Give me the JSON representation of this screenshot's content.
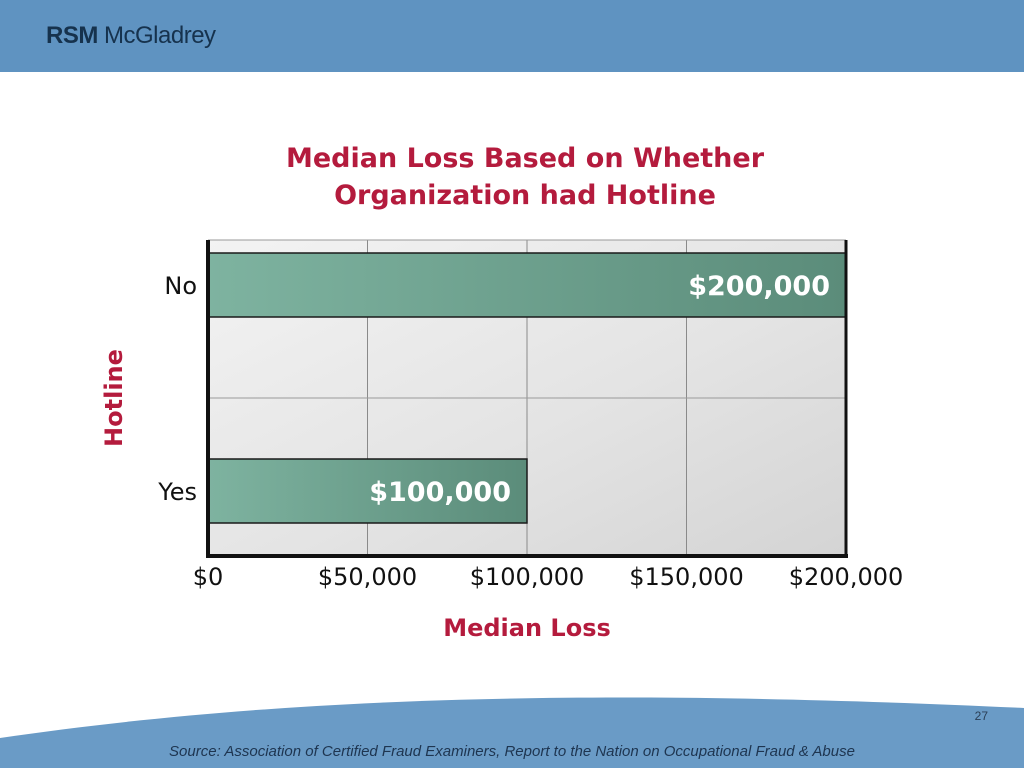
{
  "header": {
    "logo_rsm": "RSM",
    "logo_mcgladrey": "McGladrey"
  },
  "chart_title_line1": "Median Loss Based on Whether",
  "chart_title_line2": "Organization had Hotline",
  "chart_data": {
    "type": "bar",
    "orientation": "horizontal",
    "title": "Median Loss Based on Whether Organization had Hotline",
    "xlabel": "Median Loss",
    "ylabel": "Hotline",
    "categories": [
      "No",
      "Yes"
    ],
    "values": [
      200000,
      100000
    ],
    "data_labels": [
      "$200,000",
      "$100,000"
    ],
    "xlim": [
      0,
      200000
    ],
    "xticks": [
      0,
      50000,
      100000,
      150000,
      200000
    ],
    "xtick_labels": [
      "$0",
      "$50,000",
      "$100,000",
      "$150,000",
      "$200,000"
    ],
    "grid": true,
    "colors": {
      "bar": "#6f9e8c",
      "bar_dark": "#5a8a78",
      "title": "#b41b3d",
      "axis": "#111111"
    }
  },
  "footer": {
    "page_number": "27",
    "source": "Source: Association of Certified Fraud Examiners, Report to the Nation on Occupational Fraud & Abuse"
  }
}
